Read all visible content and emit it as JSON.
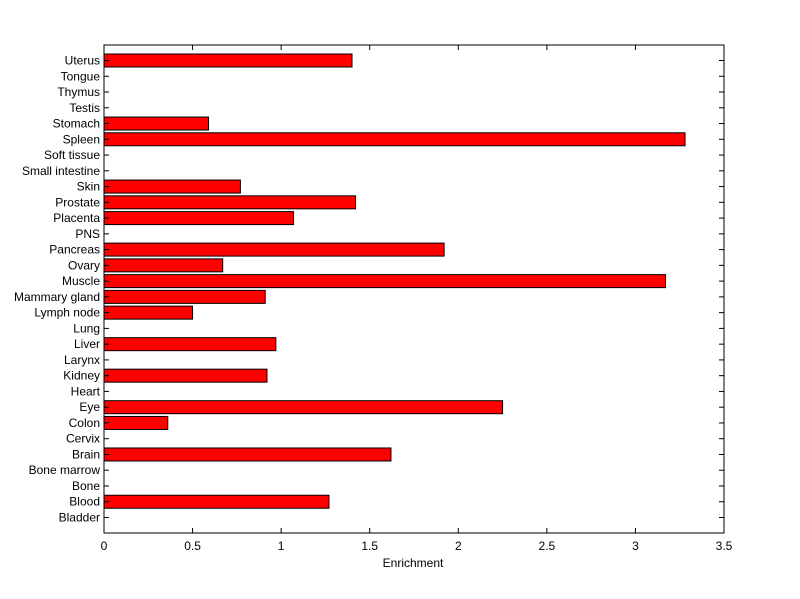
{
  "chart_data": {
    "type": "bar",
    "orientation": "horizontal",
    "categories": [
      "Bladder",
      "Blood",
      "Bone",
      "Bone marrow",
      "Brain",
      "Cervix",
      "Colon",
      "Eye",
      "Heart",
      "Kidney",
      "Larynx",
      "Liver",
      "Lung",
      "Lymph node",
      "Mammary gland",
      "Muscle",
      "Ovary",
      "Pancreas",
      "PNS",
      "Placenta",
      "Prostate",
      "Skin",
      "Small intestine",
      "Soft tissue",
      "Spleen",
      "Stomach",
      "Testis",
      "Thymus",
      "Tongue",
      "Uterus"
    ],
    "values": [
      0,
      1.27,
      0,
      0,
      1.62,
      0,
      0.36,
      2.25,
      0,
      0.92,
      0,
      0.97,
      0,
      0.5,
      0.91,
      3.17,
      0.67,
      1.92,
      0,
      1.07,
      1.42,
      0.77,
      0,
      0,
      3.28,
      0.59,
      0,
      0,
      0,
      1.4
    ],
    "xlabel": "Enrichment",
    "ylabel": "",
    "title": "",
    "xlim": [
      0,
      3.5
    ],
    "xticks": [
      "0",
      "0.5",
      "1",
      "1.5",
      "2",
      "2.5",
      "3",
      "3.5"
    ],
    "grid": false,
    "bar_color": "#ff0000"
  }
}
